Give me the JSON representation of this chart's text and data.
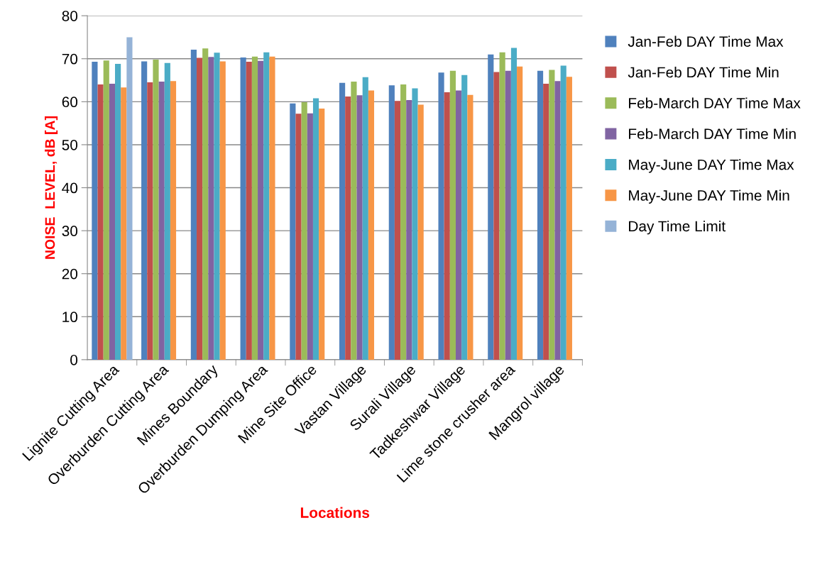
{
  "chart_data": {
    "type": "bar",
    "xlabel": "Locations",
    "ylabel": "NOISE  LEVEL, dB [A]",
    "categories": [
      "Lignite Cutting Area",
      "Overburden Cutting Area",
      "Mines Boundary",
      "Overburden Dumping Area",
      "Mine Site Office",
      "Vastan Village",
      "Surali Village",
      "Tadkeshwar Village",
      "Lime stone crusher area",
      "Mangrol village"
    ],
    "series": [
      {
        "name": "Jan-Feb DAY Time Max",
        "color": "#4f81bd",
        "values": [
          69.3,
          69.4,
          72.1,
          70.3,
          59.6,
          64.4,
          63.8,
          66.8,
          71.0,
          67.2
        ]
      },
      {
        "name": "Jan-Feb DAY Time Min",
        "color": "#c0504d",
        "values": [
          64.0,
          64.5,
          70.2,
          69.3,
          57.2,
          61.2,
          60.2,
          62.2,
          66.9,
          64.2
        ]
      },
      {
        "name": "Feb-March DAY Time Max",
        "color": "#9bbb59",
        "values": [
          69.6,
          69.8,
          72.4,
          70.5,
          59.9,
          64.7,
          64.0,
          67.2,
          71.5,
          67.4
        ]
      },
      {
        "name": "Feb-March DAY Time Min",
        "color": "#8064a2",
        "values": [
          64.2,
          64.7,
          70.4,
          69.5,
          57.3,
          61.5,
          60.4,
          62.6,
          67.2,
          64.8
        ]
      },
      {
        "name": "May-June DAY Time Max",
        "color": "#4bacc6",
        "values": [
          68.8,
          69.0,
          71.4,
          71.5,
          60.8,
          65.7,
          63.1,
          66.2,
          72.5,
          68.4
        ]
      },
      {
        "name": "May-June DAY Time Min",
        "color": "#f79646",
        "values": [
          63.3,
          64.8,
          69.4,
          70.5,
          58.4,
          62.6,
          59.3,
          61.6,
          68.2,
          65.8
        ]
      },
      {
        "name": "Day Time Limit",
        "color": "#95b3d7",
        "values": [
          75,
          null,
          null,
          null,
          null,
          null,
          null,
          null,
          null,
          null
        ]
      }
    ],
    "ylim": [
      0,
      80
    ],
    "yticks": [
      0,
      10,
      20,
      30,
      40,
      50,
      60,
      70,
      80
    ],
    "grid": "y",
    "legend": "right"
  }
}
